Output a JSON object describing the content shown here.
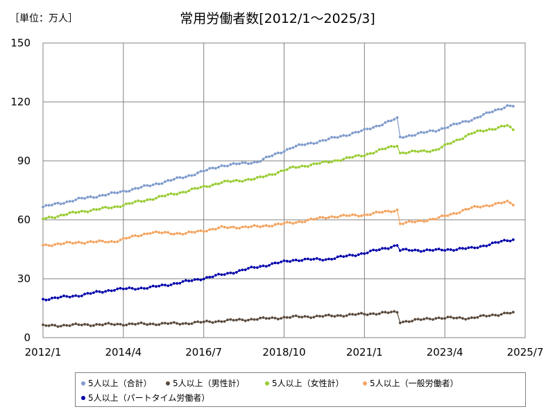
{
  "header": {
    "unit": "［単位：万人］"
  },
  "chart_data": {
    "type": "line",
    "title": "常用労働者数[2012/1～2025/3]",
    "xlabel": "",
    "ylabel": "",
    "ylim": [
      0,
      150
    ],
    "y_ticks": [
      0,
      30,
      60,
      90,
      120,
      150
    ],
    "x_ticks": [
      "2012/1",
      "2014/4",
      "2016/7",
      "2018/10",
      "2021/1",
      "2023/4",
      "2025/7"
    ],
    "grid": true,
    "legend_position": "bottom",
    "x_sample_dates": [
      "2012/1",
      "2013/1",
      "2014/1",
      "2015/1",
      "2016/1",
      "2017/1",
      "2018/1",
      "2019/1",
      "2020/1",
      "2021/1",
      "2021/12",
      "2022/1",
      "2023/1",
      "2024/1",
      "2025/1",
      "2025/3"
    ],
    "series": [
      {
        "name": "5人以上（合計）",
        "color": "#7f9ccc",
        "values": [
          66.5,
          70.5,
          73.5,
          77.5,
          82,
          87.5,
          89.5,
          97,
          101,
          105.5,
          111.5,
          102,
          105.5,
          111,
          118,
          118
        ]
      },
      {
        "name": "5人以上（男性計）",
        "color": "#5a4a3c",
        "values": [
          6,
          6.5,
          6.8,
          7,
          7.3,
          8.5,
          9.5,
          10.5,
          11,
          12,
          13,
          8,
          10,
          10,
          12.5,
          12.5
        ]
      },
      {
        "name": "5人以上（女性計）",
        "color": "#99cc33",
        "values": [
          60.5,
          64,
          66.5,
          70.5,
          74.5,
          79,
          81,
          86.5,
          89.5,
          93,
          98,
          94,
          95.5,
          104,
          108,
          105.5
        ]
      },
      {
        "name": "5人以上（一般労働者）",
        "color": "#f4a460",
        "values": [
          47,
          48.5,
          49,
          53.5,
          53,
          56,
          56.5,
          58.5,
          61.5,
          62.5,
          65,
          58,
          60.5,
          66,
          69,
          68
        ]
      },
      {
        "name": "5人以上（パートタイム労働者）",
        "color": "#0000aa",
        "values": [
          19.5,
          21.5,
          24.5,
          25.5,
          28.5,
          32,
          36,
          39.5,
          40,
          43,
          47,
          44.5,
          44.5,
          45.5,
          49.5,
          50
        ]
      }
    ]
  }
}
